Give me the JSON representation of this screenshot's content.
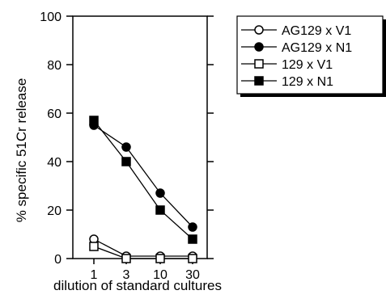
{
  "chart_data": {
    "type": "line",
    "title": "",
    "xlabel": "dilution of standard cultures",
    "ylabel": "% specific 51Cr release",
    "categories": [
      "1",
      "3",
      "10",
      "30"
    ],
    "yticks": [
      "0",
      "20",
      "40",
      "60",
      "80",
      "100"
    ],
    "ylim": [
      0,
      100
    ],
    "grid": false,
    "legend_position": "top-right",
    "series": [
      {
        "name": "AG129 x V1",
        "marker": "open-circle",
        "values": [
          8,
          1,
          1,
          1
        ]
      },
      {
        "name": "AG129 x N1",
        "marker": "filled-circle",
        "values": [
          55,
          46,
          27,
          13
        ]
      },
      {
        "name": "129 x V1",
        "marker": "open-square",
        "values": [
          5,
          0,
          0,
          0
        ]
      },
      {
        "name": "129 x N1",
        "marker": "filled-square",
        "values": [
          57,
          40,
          20,
          8
        ]
      }
    ]
  }
}
